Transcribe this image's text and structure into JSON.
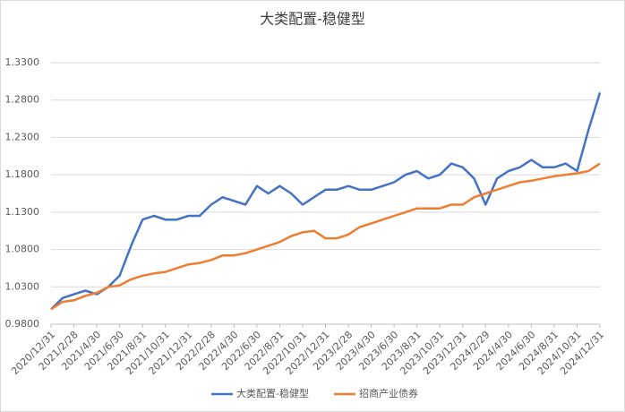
{
  "chart_data": {
    "type": "line",
    "title": "大类配置-稳健型",
    "categories": [
      "2020/12/31",
      null,
      "2021/2/28",
      null,
      "2021/4/30",
      null,
      "2021/6/30",
      null,
      "2021/8/31",
      null,
      "2021/10/31",
      null,
      "2021/12/31",
      null,
      "2022/2/28",
      null,
      "2022/4/30",
      null,
      "2022/6/30",
      null,
      "2022/8/31",
      null,
      "2022/10/31",
      null,
      "2022/12/31",
      null,
      "2023/2/28",
      null,
      "2023/4/30",
      null,
      "2023/6/30",
      null,
      "2023/8/31",
      null,
      "2023/10/31",
      null,
      "2023/12/31",
      null,
      "2024/2/29",
      null,
      "2024/4/30",
      null,
      "2024/6/30",
      null,
      "2024/8/31",
      null,
      "2024/10/31",
      null,
      "2024/12/31"
    ],
    "series": [
      {
        "name": "大类配置-稳健型",
        "color": "#4472c4",
        "values": [
          1.0,
          1.015,
          1.02,
          1.025,
          1.02,
          1.03,
          1.045,
          1.085,
          1.12,
          1.125,
          1.12,
          1.12,
          1.125,
          1.125,
          1.14,
          1.15,
          1.145,
          1.14,
          1.165,
          1.155,
          1.165,
          1.155,
          1.14,
          1.15,
          1.16,
          1.16,
          1.165,
          1.16,
          1.16,
          1.165,
          1.17,
          1.18,
          1.185,
          1.175,
          1.18,
          1.195,
          1.19,
          1.175,
          1.14,
          1.175,
          1.185,
          1.19,
          1.2,
          1.19,
          1.19,
          1.195,
          1.185,
          1.24,
          1.29
        ]
      },
      {
        "name": "招商产业债券",
        "color": "#ed7d31",
        "values": [
          1.0,
          1.01,
          1.012,
          1.018,
          1.022,
          1.03,
          1.032,
          1.04,
          1.045,
          1.048,
          1.05,
          1.055,
          1.06,
          1.062,
          1.066,
          1.072,
          1.072,
          1.075,
          1.08,
          1.085,
          1.09,
          1.098,
          1.103,
          1.105,
          1.095,
          1.095,
          1.1,
          1.11,
          1.115,
          1.12,
          1.125,
          1.13,
          1.135,
          1.135,
          1.135,
          1.14,
          1.14,
          1.15,
          1.155,
          1.16,
          1.165,
          1.17,
          1.172,
          1.175,
          1.178,
          1.18,
          1.182,
          1.185,
          1.195
        ]
      }
    ],
    "ylim": [
      0.98,
      1.33
    ],
    "yticks": [
      {
        "value": 0.98,
        "label": "0.9800"
      },
      {
        "value": 1.03,
        "label": "1.0300"
      },
      {
        "value": 1.08,
        "label": "1.0800"
      },
      {
        "value": 1.13,
        "label": "1.1300"
      },
      {
        "value": 1.18,
        "label": "1.1800"
      },
      {
        "value": 1.23,
        "label": "1.2300"
      },
      {
        "value": 1.28,
        "label": "1.2800"
      },
      {
        "value": 1.33,
        "label": "1.3300"
      }
    ],
    "grid": true
  }
}
